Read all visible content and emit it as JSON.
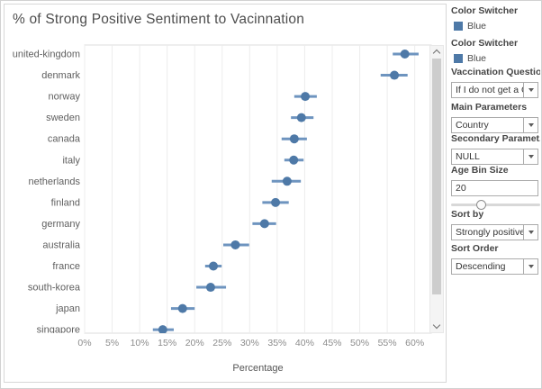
{
  "title": "% of Strong Positive Sentiment to Vacinnation",
  "chart_data": {
    "type": "scatter",
    "subtype": "horizontal-dot-plot-with-error-bars",
    "title": "% of Strong Positive Sentiment to Vacinnation",
    "categories": [
      "united-kingdom",
      "denmark",
      "norway",
      "sweden",
      "canada",
      "italy",
      "netherlands",
      "finland",
      "germany",
      "australia",
      "france",
      "south-korea",
      "japan",
      "singapore"
    ],
    "series": [
      {
        "name": "Strongly positive sentiment (%)",
        "values": [
          58.2,
          56.3,
          40.1,
          39.4,
          38.1,
          38.0,
          36.8,
          34.7,
          32.7,
          27.4,
          23.4,
          22.9,
          17.8,
          14.2
        ],
        "error_low": [
          56.0,
          53.8,
          38.1,
          37.5,
          35.8,
          36.3,
          34.0,
          32.3,
          30.5,
          25.2,
          21.9,
          20.3,
          15.7,
          12.4
        ],
        "error_high": [
          60.7,
          58.7,
          42.2,
          41.6,
          40.4,
          39.8,
          39.3,
          37.1,
          34.8,
          29.9,
          24.9,
          25.7,
          20.0,
          16.2
        ]
      }
    ],
    "xlabel": "Percentage",
    "ylabel": "",
    "xlim": [
      0,
      63
    ],
    "x_tick_values": [
      0,
      5,
      10,
      15,
      20,
      25,
      30,
      35,
      40,
      45,
      50,
      55,
      60
    ],
    "x_tick_suffix": "%",
    "grid": "vertical",
    "legend_position": "none",
    "marker_color": "#4e79a7",
    "whisker_color": "#6e94bf"
  },
  "sidebar": {
    "legends": [
      {
        "title": "Color Switcher",
        "value": "Blue",
        "swatch_color": "#4e79a7"
      },
      {
        "title": "Color Switcher",
        "value": "Blue",
        "swatch_color": "#4e79a7"
      }
    ],
    "vaccination_question": {
      "label": "Vaccination Question",
      "value": "If I do not get a C..."
    },
    "main_parameters": {
      "label": "Main Parameters",
      "value": "Country"
    },
    "secondary_parameters": {
      "label": "Secondary Paramet..",
      "value": "NULL"
    },
    "age_bin_size": {
      "label": "Age Bin Size",
      "value": "20",
      "slider_percent": 33
    },
    "sort_by": {
      "label": "Sort by",
      "value": "Strongly positive ..."
    },
    "sort_order": {
      "label": "Sort Order",
      "value": "Descending"
    }
  },
  "icons": {
    "dropdown_caret": "caret-down",
    "scroll_up": "chevron-up",
    "scroll_down": "chevron-down"
  }
}
